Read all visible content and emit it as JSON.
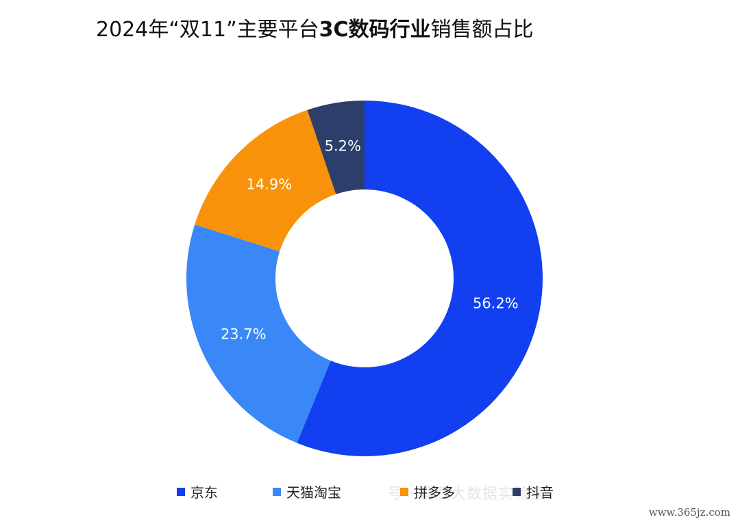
{
  "title": {
    "part1": "2024年“双11”主要平台",
    "bold": "3C数码行业",
    "part2": "销售额占比"
  },
  "watermark": "号 · 消费大数据实验室",
  "url": "www.365jz.com",
  "chart_data": {
    "type": "donut",
    "title": "2024年“双11”主要平台3C数码行业销售额占比",
    "unit": "%",
    "slices": [
      {
        "label": "京东",
        "value": 56.2,
        "display": "56.2%",
        "color": "#1240F0"
      },
      {
        "label": "天猫淘宝",
        "value": 23.7,
        "display": "23.7%",
        "color": "#3A88F8"
      },
      {
        "label": "拼多多",
        "value": 14.9,
        "display": "14.9%",
        "color": "#F8920A"
      },
      {
        "label": "抖音",
        "value": 5.2,
        "display": "5.2%",
        "color": "#2E3E6B"
      }
    ],
    "legend_position": "bottom"
  }
}
